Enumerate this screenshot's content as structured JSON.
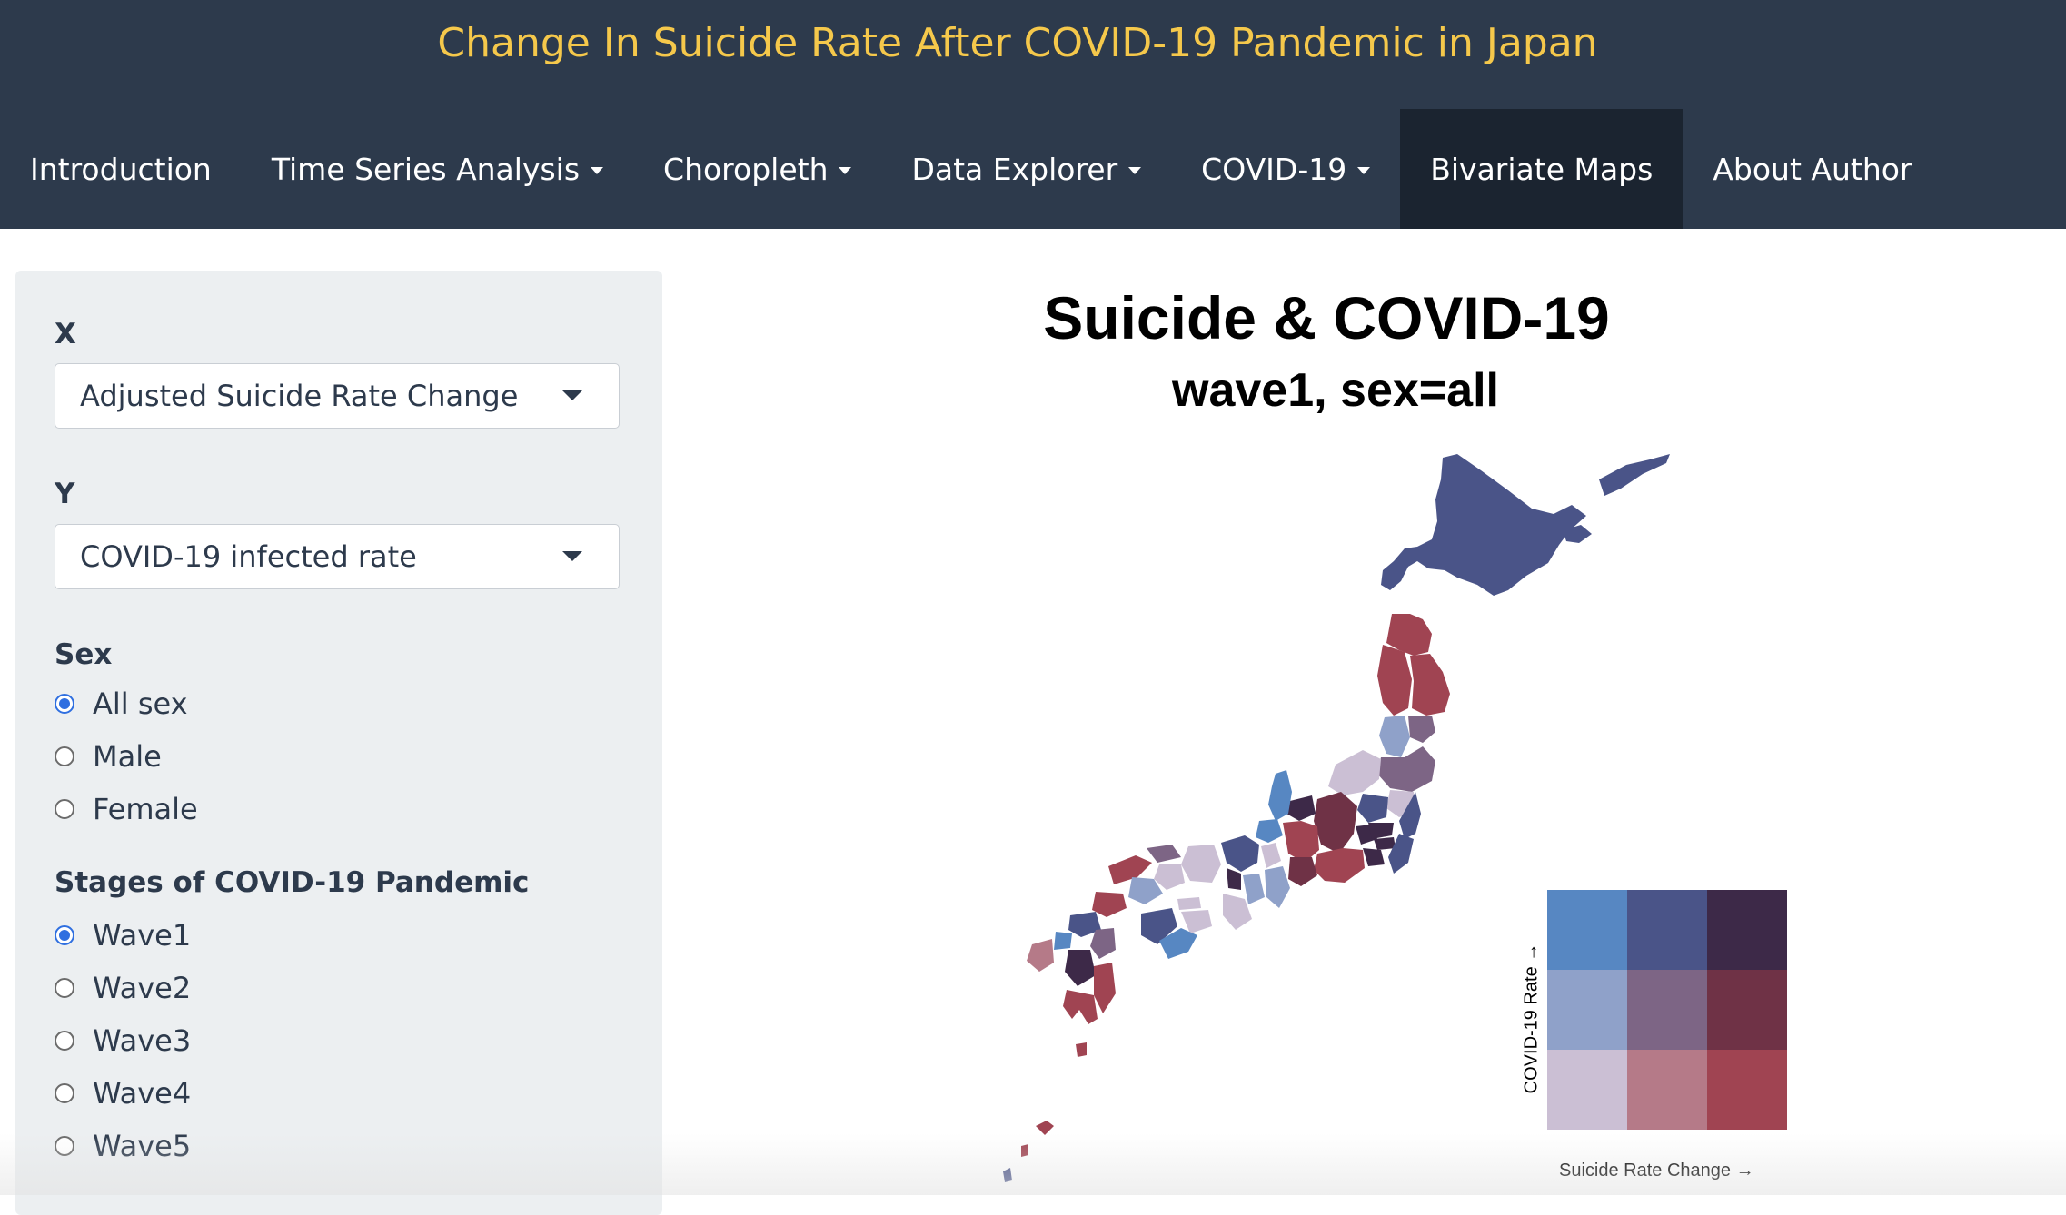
{
  "app_title": "Change In Suicide Rate After COVID-19 Pandemic in Japan",
  "nav": [
    {
      "label": "Introduction",
      "dropdown": false,
      "active": false
    },
    {
      "label": "Time Series Analysis",
      "dropdown": true,
      "active": false
    },
    {
      "label": "Choropleth",
      "dropdown": true,
      "active": false
    },
    {
      "label": "Data Explorer",
      "dropdown": true,
      "active": false
    },
    {
      "label": "COVID-19",
      "dropdown": true,
      "active": false
    },
    {
      "label": "Bivariate Maps",
      "dropdown": false,
      "active": true
    },
    {
      "label": "About Author",
      "dropdown": false,
      "active": false
    }
  ],
  "sidebar": {
    "x": {
      "label": "X",
      "value": "Adjusted Suicide Rate Change"
    },
    "y": {
      "label": "Y",
      "value": "COVID-19 infected rate"
    },
    "sex": {
      "label": "Sex",
      "options": [
        "All sex",
        "Male",
        "Female"
      ],
      "selected": "All sex"
    },
    "stages": {
      "label": "Stages of COVID-19 Pandemic",
      "options": [
        "Wave1",
        "Wave2",
        "Wave3",
        "Wave4",
        "Wave5"
      ],
      "selected": "Wave1"
    }
  },
  "map": {
    "title": "Suicide & COVID-19",
    "subtitle": "wave1, sex=all",
    "legend": {
      "y_label": "COVID-19 Rate →",
      "x_label": "Suicide Rate Change →",
      "palette": [
        [
          "#5787c2",
          "#4a5488",
          "#3d2948"
        ],
        [
          "#8fa1c9",
          "#7d6585",
          "#6f3246"
        ],
        [
          "#cbbfd4",
          "#b57a88",
          "#a04452"
        ]
      ]
    }
  },
  "colors": {
    "header_bg": "#2d3a4c",
    "title_yellow": "#f5c84b",
    "active_nav": "#1b2430"
  }
}
